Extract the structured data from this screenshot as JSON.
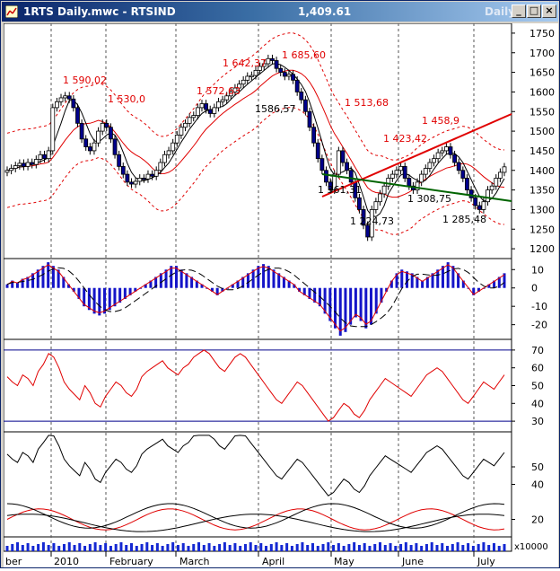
{
  "window": {
    "title": "1RTS Daily.mwc - RTSIND",
    "last_price": "1,409.61",
    "period": "Daily",
    "buttons": {
      "minimize": "_",
      "maximize": "□",
      "close": "×"
    }
  },
  "chart_data": [
    {
      "type": "candlestick",
      "instrument": "RTSIND",
      "y_axis_ticks": [
        "1750",
        "1700",
        "1650",
        "1600",
        "1550",
        "1500",
        "1450",
        "1400",
        "1350",
        "1300",
        "1250",
        "1200"
      ],
      "ylim": [
        1175,
        1775
      ],
      "price_annotations_red": [
        "1 590,02",
        "1 530,0",
        "1 642,37",
        "1 685,60",
        "1 572,63",
        "1 513,68",
        "1 458,9",
        "1 423,42"
      ],
      "price_annotations_black": [
        "1586,57",
        "1 361,31",
        "1 224,73",
        "1 308,75",
        "1 285,48"
      ],
      "overlays": [
        "Bollinger envelope (red dashed)",
        "Moving average (red)",
        "Moving average (black)",
        "Resistance trendline (red)",
        "Support trendline (green)"
      ],
      "close_series": [
        1400,
        1405,
        1412,
        1418,
        1410,
        1420,
        1415,
        1428,
        1440,
        1430,
        1450,
        1560,
        1575,
        1585,
        1590,
        1582,
        1560,
        1520,
        1480,
        1460,
        1450,
        1470,
        1500,
        1520,
        1510,
        1480,
        1440,
        1410,
        1390,
        1370,
        1365,
        1372,
        1380,
        1378,
        1390,
        1385,
        1400,
        1420,
        1440,
        1450,
        1470,
        1490,
        1510,
        1520,
        1535,
        1540,
        1560,
        1570,
        1555,
        1545,
        1560,
        1575,
        1580,
        1590,
        1600,
        1610,
        1620,
        1630,
        1640,
        1642,
        1655,
        1665,
        1672,
        1685,
        1680,
        1660,
        1650,
        1640,
        1645,
        1630,
        1600,
        1580,
        1550,
        1510,
        1470,
        1430,
        1400,
        1370,
        1350,
        1390,
        1450,
        1420,
        1400,
        1370,
        1330,
        1300,
        1260,
        1230,
        1300,
        1320,
        1340,
        1360,
        1380,
        1390,
        1400,
        1410,
        1380,
        1360,
        1350,
        1370,
        1390,
        1405,
        1420,
        1430,
        1445,
        1450,
        1460,
        1440,
        1420,
        1400,
        1380,
        1350,
        1330,
        1310,
        1300,
        1320,
        1350,
        1360,
        1380,
        1395,
        1409
      ]
    },
    {
      "type": "histogram+lines",
      "indicator": "MACD",
      "y_axis_ticks": [
        "10",
        "0",
        "-10",
        "-20"
      ],
      "ylim": [
        -28,
        16
      ],
      "histogram": [
        2,
        4,
        3,
        5,
        6,
        8,
        10,
        12,
        14,
        12,
        10,
        6,
        2,
        -2,
        -6,
        -10,
        -12,
        -14,
        -15,
        -14,
        -12,
        -10,
        -8,
        -6,
        -4,
        -2,
        0,
        2,
        4,
        6,
        8,
        10,
        12,
        12,
        10,
        8,
        6,
        4,
        2,
        0,
        -2,
        -4,
        -2,
        0,
        2,
        4,
        6,
        8,
        10,
        12,
        13,
        12,
        10,
        8,
        6,
        4,
        2,
        -2,
        -4,
        -6,
        -8,
        -10,
        -14,
        -18,
        -22,
        -26,
        -24,
        -20,
        -16,
        -18,
        -22,
        -20,
        -14,
        -8,
        -2,
        4,
        8,
        10,
        9,
        8,
        6,
        4,
        6,
        8,
        10,
        12,
        14,
        12,
        8,
        4,
        0,
        -4,
        -2,
        0,
        2,
        4,
        6,
        8
      ]
    },
    {
      "type": "line",
      "indicator": "RSI",
      "y_axis_ticks": [
        "70",
        "60",
        "50",
        "40",
        "30"
      ],
      "ylim": [
        24,
        76
      ],
      "reference_lines": [
        70,
        30
      ],
      "series": [
        55,
        52,
        50,
        56,
        54,
        50,
        58,
        62,
        68,
        66,
        60,
        52,
        48,
        45,
        42,
        50,
        46,
        40,
        38,
        44,
        48,
        52,
        50,
        46,
        44,
        48,
        55,
        58,
        60,
        62,
        64,
        60,
        58,
        56,
        60,
        62,
        66,
        68,
        70,
        68,
        64,
        60,
        58,
        62,
        66,
        68,
        66,
        62,
        58,
        54,
        50,
        46,
        42,
        40,
        44,
        48,
        52,
        50,
        46,
        42,
        38,
        34,
        30,
        32,
        36,
        40,
        38,
        34,
        32,
        36,
        42,
        46,
        50,
        54,
        52,
        50,
        48,
        46,
        44,
        48,
        52,
        56,
        58,
        60,
        58,
        54,
        50,
        46,
        42,
        40,
        44,
        48,
        52,
        50,
        48,
        52,
        56
      ]
    },
    {
      "type": "line",
      "indicator": "ADX / DMI",
      "y_axis_ticks": [
        "50",
        "40",
        "20"
      ],
      "ylim": [
        10,
        70
      ],
      "volume_multiplier": "x10000"
    }
  ],
  "x_axis_labels": [
    "ber",
    "2010",
    "February",
    "March",
    "April",
    "May",
    "June",
    "July"
  ],
  "colors": {
    "up_candle": "#ffffff",
    "down_candle": "#00008b",
    "macd_hist": "#1414c8",
    "indicator_red": "#e00000",
    "indicator_black": "#000000",
    "support_line": "#006400",
    "resistance_line": "#e00000",
    "volume": "#1428d2",
    "titlebar_start": "#0a246a",
    "titlebar_end": "#a6caf0"
  }
}
